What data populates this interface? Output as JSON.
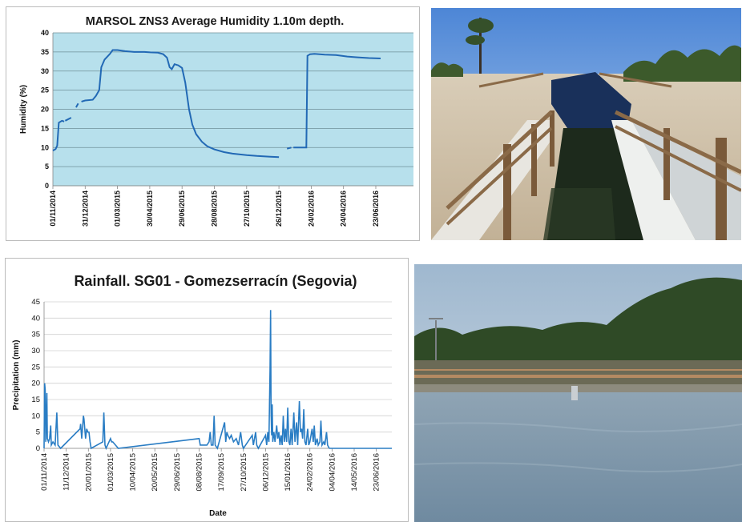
{
  "chart_data": [
    {
      "type": "line",
      "title": "MARSOL ZNS3 Average Humidity 1.10m depth.",
      "xlabel": "",
      "ylabel": "Humidity (%)",
      "ylim": [
        0,
        40
      ],
      "yticks": [
        "0",
        "5",
        "10",
        "15",
        "20",
        "25",
        "30",
        "35",
        "40"
      ],
      "xlim": [
        "01/11/2014",
        "01/09/2016"
      ],
      "xticks": [
        "01/11/2014",
        "31/12/2014",
        "01/03/2015",
        "30/04/2015",
        "29/06/2015",
        "28/08/2015",
        "27/10/2015",
        "26/12/2015",
        "24/02/2016",
        "24/04/2016",
        "23/06/2016"
      ],
      "grid": "horizontal",
      "plot_background": "#b7e0ec",
      "line_color": "#2269b5",
      "series": [
        {
          "segments": [
            [
              [
                "01/11/2014",
                9.2
              ],
              [
                "06/11/2014",
                9.6
              ],
              [
                "09/11/2014",
                10.5
              ],
              [
                "12/11/2014",
                16.5
              ],
              [
                "18/11/2014",
                17.0
              ],
              [
                "22/11/2014",
                16.8
              ]
            ],
            [
              [
                "24/11/2014",
                17.0
              ],
              [
                "05/12/2014",
                17.8
              ]
            ],
            [
              [
                "14/12/2014",
                20.5
              ],
              [
                "18/12/2014",
                21.5
              ]
            ],
            [
              [
                "24/12/2014",
                22.0
              ],
              [
                "31/12/2014",
                22.3
              ],
              [
                "14/01/2015",
                22.5
              ],
              [
                "20/01/2015",
                23.5
              ],
              [
                "26/01/2015",
                25.0
              ],
              [
                "28/01/2015",
                28.0
              ],
              [
                "30/01/2015",
                31.0
              ],
              [
                "05/02/2015",
                33.0
              ],
              [
                "15/02/2015",
                34.5
              ],
              [
                "20/02/2015",
                35.5
              ],
              [
                "01/03/2015",
                35.5
              ],
              [
                "15/03/2015",
                35.2
              ],
              [
                "01/04/2015",
                35.0
              ],
              [
                "20/04/2015",
                35.0
              ],
              [
                "01/05/2015",
                34.9
              ],
              [
                "15/05/2015",
                34.8
              ],
              [
                "25/05/2015",
                34.4
              ],
              [
                "01/06/2015",
                33.5
              ],
              [
                "06/06/2015",
                31.0
              ],
              [
                "10/06/2015",
                30.5
              ],
              [
                "15/06/2015",
                31.8
              ],
              [
                "22/06/2015",
                31.5
              ],
              [
                "29/06/2015",
                30.8
              ],
              [
                "05/07/2015",
                27.0
              ],
              [
                "12/07/2015",
                20.0
              ],
              [
                "18/07/2015",
                16.0
              ],
              [
                "25/07/2015",
                13.5
              ],
              [
                "05/08/2015",
                11.5
              ],
              [
                "15/08/2015",
                10.3
              ],
              [
                "28/08/2015",
                9.5
              ],
              [
                "15/09/2015",
                8.8
              ],
              [
                "01/10/2015",
                8.4
              ],
              [
                "27/10/2015",
                8.0
              ],
              [
                "15/11/2015",
                7.8
              ],
              [
                "10/12/2015",
                7.6
              ],
              [
                "26/12/2015",
                7.5
              ]
            ],
            [
              [
                "10/01/2016",
                9.7
              ],
              [
                "18/01/2016",
                10.0
              ]
            ],
            [
              [
                "22/01/2016",
                10.0
              ],
              [
                "15/02/2016",
                10.0
              ],
              [
                "17/02/2016",
                34.0
              ],
              [
                "22/02/2016",
                34.4
              ],
              [
                "01/03/2016",
                34.5
              ],
              [
                "20/03/2016",
                34.3
              ],
              [
                "10/04/2016",
                34.2
              ],
              [
                "01/05/2016",
                33.8
              ],
              [
                "20/05/2016",
                33.6
              ],
              [
                "10/06/2016",
                33.4
              ],
              [
                "02/07/2016",
                33.3
              ]
            ]
          ]
        }
      ]
    },
    {
      "type": "area",
      "title": "Rainfall. SG01 - Gomezserracín (Segovia)",
      "xlabel": "Date",
      "ylabel": "Precipitation (mm)",
      "ylim": [
        0,
        45
      ],
      "yticks": [
        "0",
        "5",
        "10",
        "15",
        "20",
        "25",
        "30",
        "35",
        "40",
        "45"
      ],
      "xlim": [
        "01/11/2014",
        "21/07/2016"
      ],
      "xticks": [
        "01/11/2014",
        "11/12/2014",
        "20/01/2015",
        "01/03/2015",
        "10/04/2015",
        "20/05/2015",
        "29/06/2015",
        "08/08/2015",
        "17/09/2015",
        "27/10/2015",
        "06/12/2015",
        "15/01/2016",
        "24/02/2016",
        "04/04/2016",
        "14/05/2016",
        "23/06/2016"
      ],
      "grid": "horizontal",
      "line_color": "#2a7dc4",
      "series": [
        {
          "values": [
            [
              "01/11/2014",
              0
            ],
            [
              "02/11/2014",
              20
            ],
            [
              "03/11/2014",
              18
            ],
            [
              "04/11/2014",
              2
            ],
            [
              "05/11/2014",
              8
            ],
            [
              "06/11/2014",
              17
            ],
            [
              "07/11/2014",
              3
            ],
            [
              "09/11/2014",
              2
            ],
            [
              "11/11/2014",
              3
            ],
            [
              "13/11/2014",
              7
            ],
            [
              "14/11/2014",
              1
            ],
            [
              "17/11/2014",
              2
            ],
            [
              "21/11/2014",
              1
            ],
            [
              "24/11/2014",
              11
            ],
            [
              "26/11/2014",
              1
            ],
            [
              "01/12/2014",
              0
            ],
            [
              "05/01/2015",
              6
            ],
            [
              "06/01/2015",
              7.5
            ],
            [
              "08/01/2015",
              3
            ],
            [
              "11/01/2015",
              10
            ],
            [
              "12/01/2015",
              9
            ],
            [
              "15/01/2015",
              3
            ],
            [
              "17/01/2015",
              6
            ],
            [
              "19/01/2015",
              5
            ],
            [
              "21/01/2015",
              5
            ],
            [
              "23/01/2015",
              2
            ],
            [
              "25/01/2015",
              0
            ],
            [
              "15/02/2015",
              2
            ],
            [
              "17/02/2015",
              11
            ],
            [
              "19/02/2015",
              1
            ],
            [
              "21/02/2015",
              0
            ],
            [
              "01/03/2015",
              3
            ],
            [
              "03/03/2015",
              2
            ],
            [
              "05/03/2015",
              2
            ],
            [
              "10/03/2015",
              1
            ],
            [
              "15/03/2015",
              0
            ],
            [
              "08/08/2015",
              3
            ],
            [
              "10/08/2015",
              1
            ],
            [
              "20/08/2015",
              1
            ],
            [
              "22/08/2015",
              1
            ],
            [
              "26/08/2015",
              2
            ],
            [
              "28/08/2015",
              5
            ],
            [
              "30/08/2015",
              1
            ],
            [
              "02/09/2015",
              1
            ],
            [
              "04/09/2015",
              10
            ],
            [
              "06/09/2015",
              1
            ],
            [
              "10/09/2015",
              0
            ],
            [
              "23/09/2015",
              8
            ],
            [
              "25/09/2015",
              2
            ],
            [
              "27/09/2015",
              5
            ],
            [
              "29/09/2015",
              4
            ],
            [
              "02/10/2015",
              3
            ],
            [
              "05/10/2015",
              4
            ],
            [
              "09/10/2015",
              2
            ],
            [
              "14/10/2015",
              3
            ],
            [
              "18/10/2015",
              1
            ],
            [
              "22/10/2015",
              5
            ],
            [
              "25/10/2015",
              1
            ],
            [
              "27/10/2015",
              0
            ],
            [
              "12/11/2015",
              4
            ],
            [
              "14/11/2015",
              1
            ],
            [
              "18/11/2015",
              5
            ],
            [
              "20/11/2015",
              1
            ],
            [
              "23/11/2015",
              0
            ],
            [
              "06/12/2015",
              4
            ],
            [
              "08/12/2015",
              1
            ],
            [
              "10/12/2015",
              5
            ],
            [
              "12/12/2015",
              2
            ],
            [
              "14/12/2015",
              24
            ],
            [
              "15/12/2015",
              42.5
            ],
            [
              "16/12/2015",
              11
            ],
            [
              "17/12/2015",
              4
            ],
            [
              "18/12/2015",
              13.5
            ],
            [
              "19/12/2015",
              2
            ],
            [
              "21/12/2015",
              5
            ],
            [
              "23/12/2015",
              2
            ],
            [
              "26/12/2015",
              7
            ],
            [
              "28/12/2015",
              3
            ],
            [
              "30/12/2015",
              5
            ],
            [
              "01/01/2016",
              1
            ],
            [
              "03/01/2016",
              4
            ],
            [
              "05/01/2016",
              1
            ],
            [
              "07/01/2016",
              10
            ],
            [
              "09/01/2016",
              2
            ],
            [
              "11/01/2016",
              6
            ],
            [
              "13/01/2016",
              2
            ],
            [
              "15/01/2016",
              12.5
            ],
            [
              "17/01/2016",
              2
            ],
            [
              "19/01/2016",
              1
            ],
            [
              "21/01/2016",
              6
            ],
            [
              "23/01/2016",
              1
            ],
            [
              "26/01/2016",
              11
            ],
            [
              "28/01/2016",
              2
            ],
            [
              "31/01/2016",
              8
            ],
            [
              "02/02/2016",
              1
            ],
            [
              "05/02/2016",
              14.5
            ],
            [
              "07/02/2016",
              5
            ],
            [
              "09/02/2016",
              6
            ],
            [
              "11/02/2016",
              3
            ],
            [
              "13/02/2016",
              12
            ],
            [
              "15/02/2016",
              2
            ],
            [
              "17/02/2016",
              1
            ],
            [
              "20/02/2016",
              6
            ],
            [
              "22/02/2016",
              1
            ],
            [
              "24/02/2016",
              2
            ],
            [
              "26/02/2016",
              4
            ],
            [
              "28/02/2016",
              6
            ],
            [
              "01/03/2016",
              2
            ],
            [
              "03/03/2016",
              7
            ],
            [
              "05/03/2016",
              1
            ],
            [
              "08/03/2016",
              3
            ],
            [
              "10/03/2016",
              1
            ],
            [
              "13/03/2016",
              2
            ],
            [
              "15/03/2016",
              8.5
            ],
            [
              "17/03/2016",
              1
            ],
            [
              "20/03/2016",
              2
            ],
            [
              "22/03/2016",
              1
            ],
            [
              "25/03/2016",
              5
            ],
            [
              "27/03/2016",
              1
            ],
            [
              "30/03/2016",
              0
            ]
          ]
        }
      ]
    }
  ],
  "photos": {
    "channel": "infiltration-channel-photo",
    "pond": "infiltration-pond-photo"
  }
}
